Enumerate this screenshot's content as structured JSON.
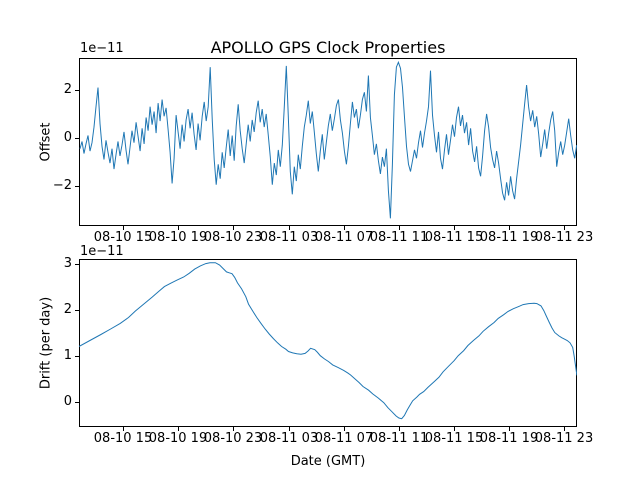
{
  "figure": {
    "title": "APOLLO GPS Clock Properties",
    "background_color": "#ffffff",
    "text_color": "#000000",
    "line_color": "#1f77b4"
  },
  "x_axis": {
    "label": "Date (GMT)",
    "lim_hours": [
      11.81,
      47.91
    ],
    "tick_hours": [
      15,
      19,
      23,
      27,
      31,
      35,
      39,
      43,
      47
    ],
    "tick_labels": [
      "08-10 15",
      "08-10 19",
      "08-10 23",
      "08-11 03",
      "08-11 07",
      "08-11 11",
      "08-11 15",
      "08-11 19",
      "08-11 23"
    ]
  },
  "chart_data": [
    {
      "type": "line",
      "title": "APOLLO GPS Clock Properties",
      "ylabel": "Offset",
      "offset_label": "1e−11",
      "units": "1e-11",
      "ylim": [
        -3.67,
        3.33
      ],
      "y_ticks": [
        2,
        0,
        -2
      ],
      "y_tick_labels": [
        "2",
        "0",
        "−2"
      ],
      "grid": false,
      "legend": "none",
      "series": {
        "name": "offset",
        "x_start_hours": 11.88,
        "x_step_hours": 0.1452,
        "y": [
          -0.45,
          -0.15,
          -0.65,
          -0.25,
          0.1,
          -0.55,
          -0.2,
          0.45,
          1.3,
          2.1,
          0.6,
          -0.35,
          -0.9,
          -0.1,
          -0.6,
          -1.05,
          -0.45,
          -1.3,
          -0.7,
          -0.15,
          -0.75,
          -0.3,
          0.25,
          -0.5,
          -1.1,
          -0.4,
          0.3,
          -0.2,
          0.65,
          0.05,
          -0.55,
          0.4,
          -0.25,
          0.85,
          0.3,
          1.3,
          0.55,
          1.1,
          0.2,
          1.45,
          0.7,
          1.6,
          0.9,
          1.25,
          0.35,
          -0.6,
          -1.9,
          -0.85,
          0.95,
          0.25,
          -0.45,
          0.55,
          -0.15,
          0.75,
          1.2,
          0.4,
          1.05,
          0.15,
          -0.5,
          0.6,
          -0.1,
          0.9,
          1.5,
          0.7,
          1.3,
          2.95,
          0.8,
          -0.9,
          -1.95,
          -1.1,
          -1.7,
          -0.6,
          -1.25,
          -0.4,
          0.35,
          -0.75,
          0.1,
          -0.95,
          0.5,
          1.4,
          0.3,
          -0.45,
          -1.05,
          -0.25,
          0.55,
          -0.15,
          0.75,
          0.25,
          1.05,
          1.55,
          0.65,
          1.2,
          0.45,
          1.0,
          0.1,
          -0.8,
          -1.95,
          -1.05,
          -1.55,
          -0.5,
          -1.2,
          -0.3,
          1.3,
          3.0,
          0.9,
          -1.4,
          -2.35,
          -1.2,
          -1.8,
          -0.7,
          -1.3,
          -0.35,
          0.45,
          0.95,
          1.55,
          0.6,
          1.1,
          0.25,
          -0.65,
          -1.4,
          -0.55,
          0.15,
          -0.9,
          -0.2,
          0.5,
          1.0,
          0.3,
          0.8,
          1.35,
          1.6,
          0.75,
          0.2,
          -0.55,
          -1.1,
          -0.35,
          0.6,
          1.5,
          0.85,
          1.2,
          0.4,
          0.95,
          1.6,
          1.9,
          1.1,
          2.6,
          0.85,
          0.1,
          -0.7,
          -0.25,
          -0.95,
          -1.5,
          -0.8,
          -1.2,
          -0.45,
          -2.2,
          -3.35,
          -1.1,
          1.8,
          2.95,
          3.15,
          2.9,
          2.1,
          0.85,
          -0.35,
          -1.1,
          -1.4,
          -0.95,
          -0.5,
          -0.85,
          -0.2,
          0.3,
          -0.4,
          0.2,
          0.7,
          1.3,
          2.8,
          0.95,
          0.1,
          -0.6,
          0.25,
          -0.85,
          -1.3,
          -0.5,
          0.15,
          -0.7,
          -0.1,
          0.55,
          0.05,
          0.85,
          1.3,
          0.5,
          0.95,
          0.2,
          0.65,
          -0.3,
          0.4,
          -0.55,
          -1.0,
          -0.35,
          -1.25,
          -1.6,
          -0.75,
          0.3,
          1.0,
          0.45,
          -0.4,
          -0.9,
          -1.25,
          -0.55,
          -1.05,
          -1.7,
          -2.3,
          -2.6,
          -1.85,
          -2.4,
          -1.6,
          -2.2,
          -2.55,
          -1.7,
          -1.0,
          -0.3,
          0.55,
          1.4,
          2.2,
          1.3,
          0.7,
          1.15,
          0.45,
          0.9,
          0.15,
          -0.8,
          -0.25,
          0.35,
          -0.45,
          0.2,
          0.75,
          1.1,
          0.3,
          -1.2,
          -0.6,
          -0.15,
          -0.7,
          -0.3,
          0.25,
          0.8,
          0.1,
          -0.5,
          -0.85,
          -0.3
        ]
      }
    },
    {
      "type": "line",
      "ylabel": "Drift (per day)",
      "xlabel": "Date (GMT)",
      "offset_label": "1e−11",
      "units": "1e-11",
      "ylim": [
        -0.55,
        3.1
      ],
      "y_ticks": [
        3,
        2,
        1,
        0
      ],
      "y_tick_labels": [
        "3",
        "2",
        "1",
        "0"
      ],
      "grid": false,
      "legend": "none",
      "series": {
        "name": "drift",
        "x_hours": [
          11.8,
          12.6,
          13.4,
          14.1,
          14.8,
          15.4,
          15.9,
          16.5,
          17.1,
          17.6,
          18.0,
          18.5,
          18.9,
          19.4,
          19.8,
          20.2,
          20.6,
          21.0,
          21.3,
          21.7,
          22.0,
          22.3,
          22.5,
          22.7,
          22.9,
          23.1,
          23.3,
          23.6,
          23.9,
          24.1,
          24.4,
          24.7,
          25.0,
          25.3,
          25.6,
          25.9,
          26.2,
          26.5,
          26.8,
          27.0,
          27.3,
          27.6,
          27.9,
          28.2,
          28.4,
          28.6,
          28.9,
          29.1,
          29.3,
          29.6,
          29.9,
          30.2,
          30.6,
          31.0,
          31.3,
          31.5,
          31.8,
          32.1,
          32.4,
          32.8,
          33.1,
          33.5,
          33.9,
          34.2,
          34.5,
          34.8,
          35.0,
          35.2,
          35.4,
          35.6,
          35.8,
          36.0,
          36.3,
          36.5,
          36.8,
          37.1,
          37.5,
          37.9,
          38.2,
          38.6,
          39.0,
          39.3,
          39.7,
          40.0,
          40.4,
          40.8,
          41.1,
          41.5,
          41.9,
          42.2,
          42.6,
          42.9,
          43.3,
          43.7,
          44.0,
          44.4,
          44.8,
          45.0,
          45.3,
          45.5,
          45.7,
          45.9,
          46.1,
          46.3,
          46.6,
          46.8,
          47.0,
          47.2,
          47.4,
          47.6,
          47.7,
          47.9
        ],
        "y": [
          1.2,
          1.33,
          1.46,
          1.58,
          1.7,
          1.83,
          1.97,
          2.12,
          2.27,
          2.4,
          2.5,
          2.58,
          2.64,
          2.71,
          2.79,
          2.88,
          2.95,
          3.0,
          3.02,
          3.02,
          2.97,
          2.88,
          2.82,
          2.8,
          2.78,
          2.7,
          2.58,
          2.45,
          2.28,
          2.12,
          1.97,
          1.83,
          1.7,
          1.58,
          1.47,
          1.37,
          1.28,
          1.2,
          1.14,
          1.09,
          1.06,
          1.04,
          1.03,
          1.05,
          1.1,
          1.16,
          1.13,
          1.07,
          1.0,
          0.93,
          0.87,
          0.8,
          0.74,
          0.68,
          0.62,
          0.58,
          0.5,
          0.42,
          0.33,
          0.25,
          0.17,
          0.08,
          -0.02,
          -0.13,
          -0.22,
          -0.31,
          -0.355,
          -0.37,
          -0.3,
          -0.18,
          -0.08,
          0.02,
          0.1,
          0.16,
          0.22,
          0.31,
          0.42,
          0.53,
          0.65,
          0.77,
          0.89,
          1.0,
          1.11,
          1.22,
          1.33,
          1.43,
          1.53,
          1.63,
          1.72,
          1.81,
          1.89,
          1.96,
          2.02,
          2.07,
          2.11,
          2.13,
          2.14,
          2.13,
          2.08,
          1.98,
          1.85,
          1.72,
          1.6,
          1.5,
          1.43,
          1.39,
          1.36,
          1.33,
          1.28,
          1.18,
          1.0,
          0.57
        ]
      }
    }
  ]
}
